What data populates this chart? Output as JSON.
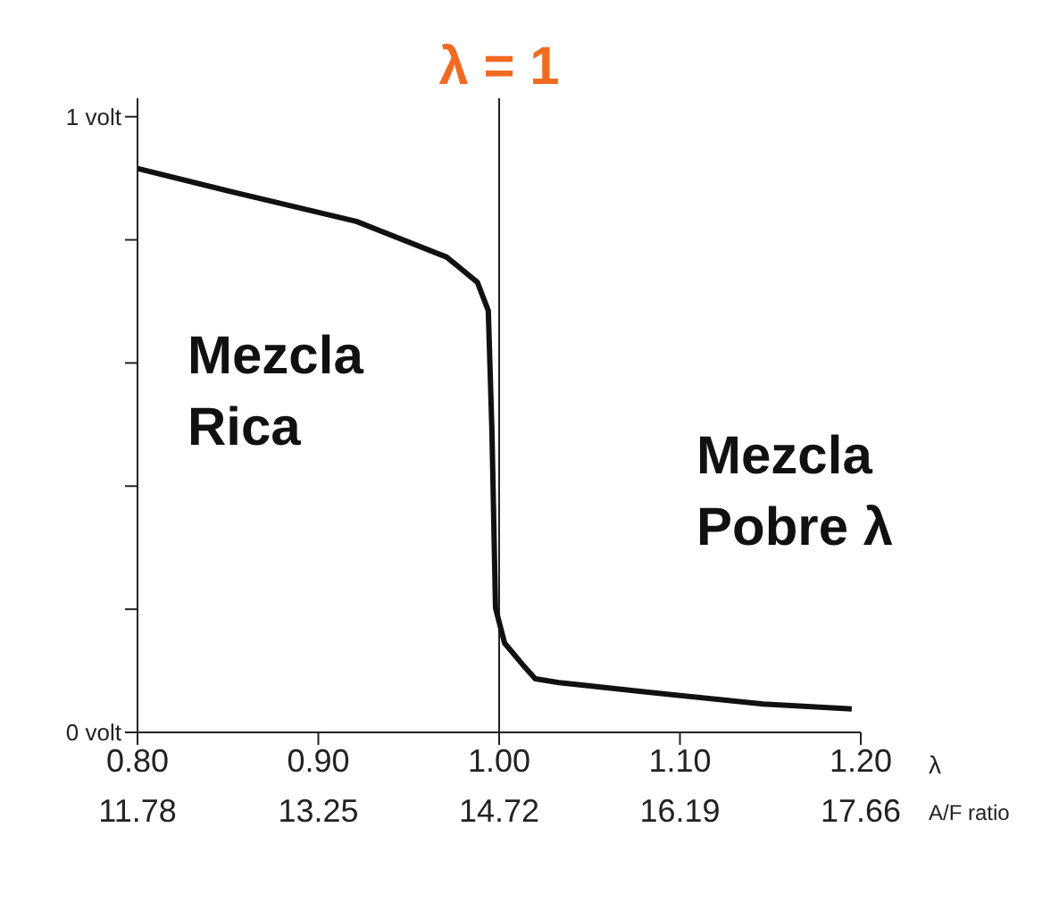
{
  "chart_data": {
    "type": "line",
    "xlabel": "λ",
    "x2label": "A/F ratio",
    "x": [
      0.8,
      0.855,
      0.921,
      0.971,
      0.988,
      0.994,
      0.996,
      0.998,
      1.003,
      1.013,
      1.02,
      1.033,
      1.08,
      1.146,
      1.195
    ],
    "series": [
      {
        "color": "#111111",
        "values": [
          0.916,
          0.876,
          0.83,
          0.772,
          0.731,
          0.685,
          0.491,
          0.202,
          0.145,
          0.11,
          0.087,
          0.081,
          0.066,
          0.046,
          0.038
        ]
      }
    ],
    "xlim": [
      0.8,
      1.2
    ],
    "xticks": [
      {
        "value": 0.8,
        "label": "0.80"
      },
      {
        "value": 0.9,
        "label": "0.90"
      },
      {
        "value": 1.0,
        "label": "1.00"
      },
      {
        "value": 1.1,
        "label": "1.10"
      },
      {
        "value": 1.2,
        "label": "1.20"
      }
    ],
    "x2lim": [
      11.78,
      17.66
    ],
    "x2ticks": [
      11.78,
      13.25,
      14.72,
      16.19,
      17.66
    ],
    "ylim": [
      0,
      1.03
    ],
    "yticks": [
      {
        "value": 0,
        "label": "0 volt"
      },
      {
        "value": 0.2,
        "label": null
      },
      {
        "value": 0.4,
        "label": null
      },
      {
        "value": 0.6,
        "label": null
      },
      {
        "value": 0.8,
        "label": null
      },
      {
        "value": 1,
        "label": "1 volt"
      }
    ],
    "ref_lines": [
      {
        "axis": "x",
        "value": 1.0,
        "label": "λ = 1",
        "color": "#222222"
      }
    ],
    "annotations": [
      "Mezcla\nRica",
      "Mezcla\nPobre λ"
    ],
    "grid": false,
    "legend": false,
    "marker": "none",
    "line_style": "solid"
  }
}
